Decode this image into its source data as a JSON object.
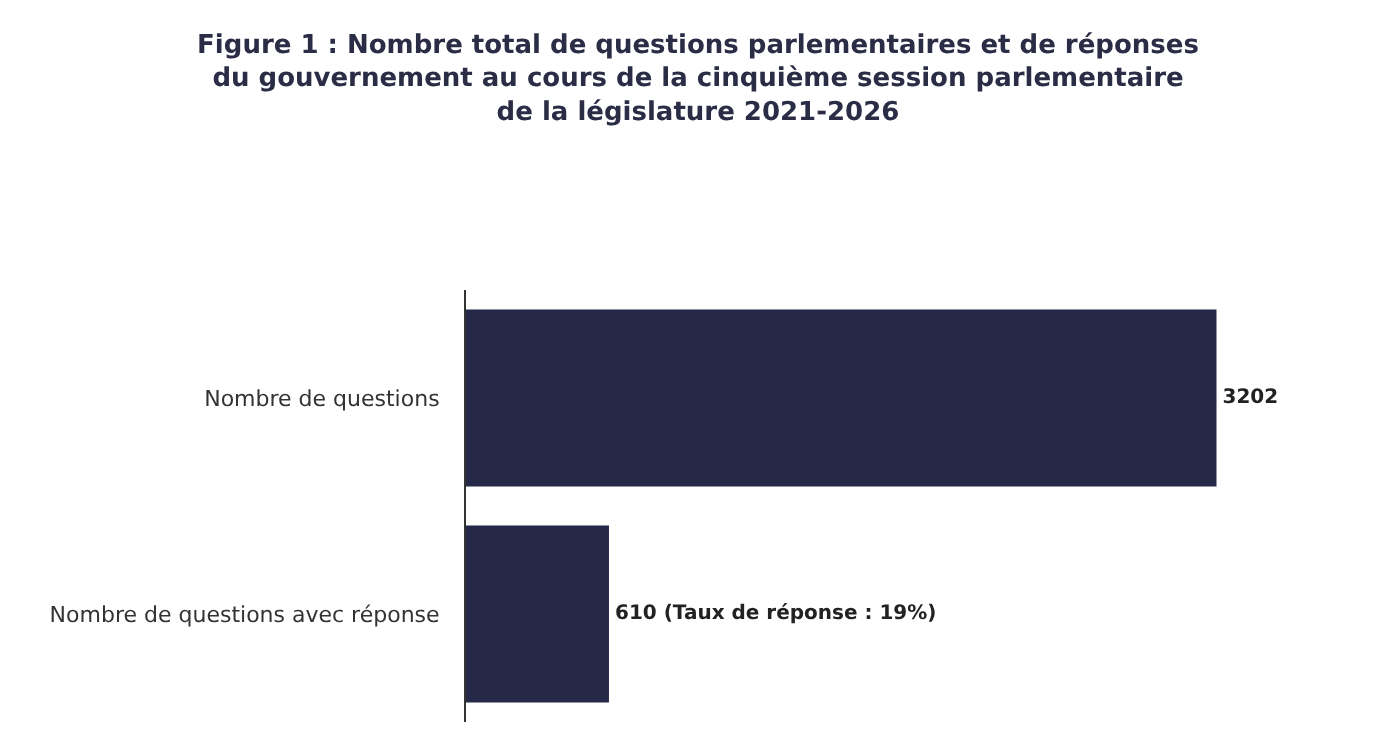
{
  "chart_data": {
    "type": "bar",
    "orientation": "horizontal",
    "title": "Figure 1 : Nombre total de questions parlementaires et de réponses\ndu gouvernement au cours de la cinquième session parlementaire\nde la législature 2021-2026",
    "categories": [
      "Nombre de questions",
      "Nombre de questions avec réponse"
    ],
    "values": [
      3202,
      610
    ],
    "value_labels": [
      "3202",
      "610 (Taux de réponse : 19%)"
    ],
    "color": "#252849",
    "tick_labels": "y",
    "legend": false
  }
}
